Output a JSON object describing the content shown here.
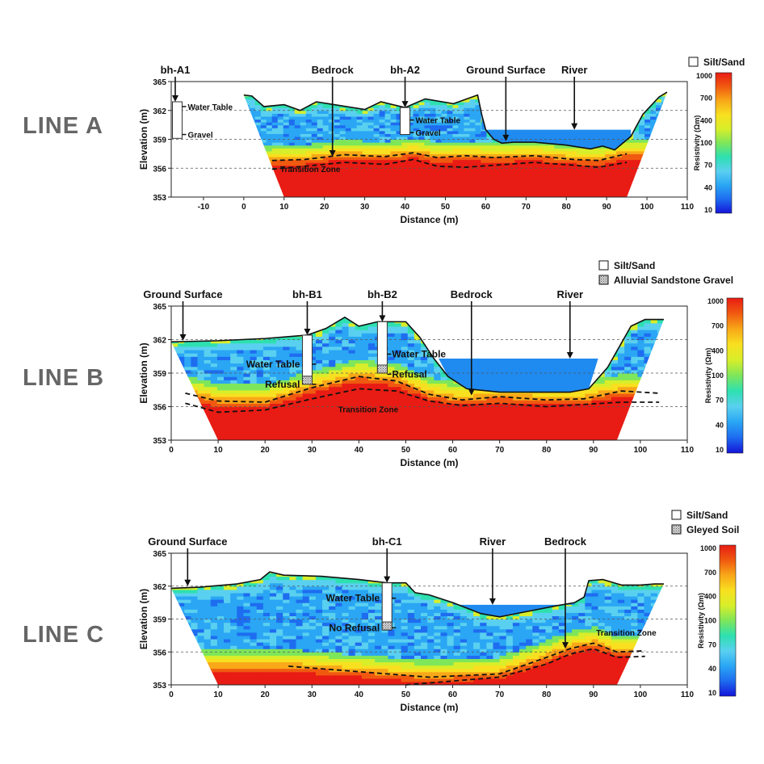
{
  "colors": {
    "water": "#1f8bf0",
    "ramp": [
      "#1414d8",
      "#1e6cf0",
      "#2aa6f4",
      "#5ad0f0",
      "#2ee0b0",
      "#7ee65a",
      "#d8ee2a",
      "#f8e020",
      "#f8a818",
      "#f05a10",
      "#e81c14"
    ]
  },
  "colorbar": {
    "ticks": [
      "1000",
      "700",
      "400",
      "100",
      "70",
      "40",
      "10"
    ],
    "label": "Resistivity (Ωm)"
  },
  "chart_data": [
    {
      "type": "heatmap",
      "panel": "LINE A",
      "title": "LINE A",
      "xlabel": "Distance (m)",
      "ylabel": "Elevation (m)",
      "xlim": [
        -18,
        110
      ],
      "ylim": [
        353,
        365
      ],
      "xticks": [
        "-10",
        "0",
        "10",
        "20",
        "30",
        "40",
        "50",
        "60",
        "70",
        "80",
        "90",
        "100",
        "110"
      ],
      "xtick_values": [
        -10,
        0,
        10,
        20,
        30,
        40,
        50,
        60,
        70,
        80,
        90,
        100,
        110
      ],
      "yticks": [
        "365",
        "362",
        "359",
        "356",
        "353"
      ],
      "ytick_values": [
        365,
        362,
        359,
        356,
        353
      ],
      "legend": [
        "Silt/Sand"
      ],
      "ground_surface": [
        [
          0,
          363.6
        ],
        [
          2,
          363.5
        ],
        [
          5,
          362.4
        ],
        [
          10,
          362.6
        ],
        [
          14,
          362.0
        ],
        [
          18,
          362.9
        ],
        [
          24,
          362.5
        ],
        [
          30,
          362.1
        ],
        [
          34,
          362.9
        ],
        [
          40,
          362.3
        ],
        [
          45,
          363.2
        ],
        [
          52,
          362.7
        ],
        [
          58,
          363.6
        ],
        [
          59,
          361.6
        ],
        [
          60,
          360.0
        ],
        [
          62,
          359.0
        ],
        [
          64,
          358.6
        ],
        [
          67,
          358.7
        ],
        [
          72,
          358.7
        ],
        [
          80,
          358.4
        ],
        [
          86,
          358.0
        ],
        [
          89,
          358.3
        ],
        [
          92,
          357.9
        ],
        [
          96,
          359.3
        ],
        [
          99,
          361.6
        ],
        [
          103,
          363.4
        ],
        [
          105,
          363.9
        ]
      ],
      "bedrock_surface": [
        [
          7,
          356.8
        ],
        [
          15,
          356.9
        ],
        [
          25,
          357.4
        ],
        [
          35,
          357.2
        ],
        [
          42,
          357.6
        ],
        [
          48,
          357.1
        ],
        [
          55,
          357.3
        ],
        [
          62,
          357.1
        ],
        [
          72,
          357.3
        ],
        [
          82,
          356.9
        ],
        [
          88,
          356.8
        ],
        [
          95,
          357.5
        ]
      ],
      "transition_lower": [
        [
          7,
          355.9
        ],
        [
          15,
          356.2
        ],
        [
          25,
          356.6
        ],
        [
          35,
          356.4
        ],
        [
          42,
          356.9
        ],
        [
          48,
          356.2
        ],
        [
          55,
          356.1
        ],
        [
          62,
          356.3
        ],
        [
          72,
          356.6
        ],
        [
          82,
          356.3
        ],
        [
          88,
          356.1
        ],
        [
          95,
          356.6
        ]
      ],
      "river": {
        "x": [
          59,
          96
        ],
        "elevation": 360.0
      },
      "boreholes": [
        {
          "name": "bh-A1",
          "x": -16.5,
          "top": 362.9,
          "bottom": 359.1,
          "labels": [
            [
              "Water Table",
              362.4
            ],
            [
              "Gravel",
              359.5
            ]
          ]
        },
        {
          "name": "bh-A2",
          "x": 40,
          "top": 362.3,
          "bottom": 359.5,
          "labels": [
            [
              "Water Table",
              361.0
            ],
            [
              "Gravel",
              359.7
            ]
          ]
        }
      ],
      "annotations": [
        {
          "text": "Bedrock",
          "x": 22,
          "arrow_to": 357.2
        },
        {
          "text": "bh-A2",
          "x": 40,
          "arrow_to": 362.3
        },
        {
          "text": "Ground Surface",
          "x": 65,
          "arrow_to": 358.8
        },
        {
          "text": "River",
          "x": 82,
          "arrow_to": 360.0
        },
        {
          "text": "bh-A1",
          "x": -17,
          "arrow_to": 362.9
        },
        {
          "text": "Transition Zone",
          "x": 16.5,
          "y": 355.6
        }
      ]
    },
    {
      "type": "heatmap",
      "panel": "LINE B",
      "title": "LINE B",
      "xlabel": "Distance (m)",
      "ylabel": "Elevation (m)",
      "xlim": [
        0,
        110
      ],
      "ylim": [
        353,
        365
      ],
      "xticks": [
        "0",
        "10",
        "20",
        "30",
        "40",
        "50",
        "60",
        "70",
        "80",
        "90",
        "100",
        "110"
      ],
      "xtick_values": [
        0,
        10,
        20,
        30,
        40,
        50,
        60,
        70,
        80,
        90,
        100,
        110
      ],
      "yticks": [
        "365",
        "362",
        "359",
        "356",
        "353"
      ],
      "ytick_values": [
        365,
        362,
        359,
        356,
        353
      ],
      "legend": [
        "Silt/Sand",
        "Alluvial Sandstone Gravel"
      ],
      "ground_surface": [
        [
          0,
          361.8
        ],
        [
          10,
          361.9
        ],
        [
          20,
          362.1
        ],
        [
          29,
          362.4
        ],
        [
          33,
          363.0
        ],
        [
          37,
          364.0
        ],
        [
          40,
          363.2
        ],
        [
          44,
          363.6
        ],
        [
          50,
          363.6
        ],
        [
          53,
          362.2
        ],
        [
          56,
          360.3
        ],
        [
          59,
          358.7
        ],
        [
          63,
          357.6
        ],
        [
          70,
          357.3
        ],
        [
          80,
          357.3
        ],
        [
          85,
          357.3
        ],
        [
          89,
          357.6
        ],
        [
          93,
          359.5
        ],
        [
          98,
          363.2
        ],
        [
          101,
          363.8
        ],
        [
          105,
          363.8
        ]
      ],
      "bedrock_surface": [
        [
          3,
          357.2
        ],
        [
          10,
          356.5
        ],
        [
          20,
          356.4
        ],
        [
          30,
          357.7
        ],
        [
          40,
          358.7
        ],
        [
          48,
          358.3
        ],
        [
          55,
          357.1
        ],
        [
          62,
          356.6
        ],
        [
          70,
          356.9
        ],
        [
          80,
          356.6
        ],
        [
          88,
          356.7
        ],
        [
          96,
          357.4
        ],
        [
          104,
          357.2
        ]
      ],
      "transition_lower": [
        [
          3,
          356.3
        ],
        [
          10,
          355.5
        ],
        [
          20,
          355.7
        ],
        [
          30,
          356.7
        ],
        [
          40,
          357.6
        ],
        [
          48,
          357.4
        ],
        [
          55,
          356.5
        ],
        [
          62,
          356.1
        ],
        [
          70,
          356.3
        ],
        [
          80,
          356.0
        ],
        [
          88,
          356.2
        ],
        [
          96,
          356.4
        ],
        [
          104,
          356.4
        ]
      ],
      "river": {
        "x": [
          57,
          91
        ],
        "elevation": 360.3
      },
      "boreholes": [
        {
          "name": "bh-B1",
          "x": 29,
          "top": 362.4,
          "bottom": 358.0,
          "labels": [
            [
              "Water Table",
              359.8
            ],
            [
              "Refusal",
              358.0
            ]
          ]
        },
        {
          "name": "bh-B2",
          "x": 45,
          "top": 363.6,
          "bottom": 359.0,
          "labels": [
            [
              "Water Table",
              360.7
            ],
            [
              "Refusal",
              358.9
            ]
          ]
        }
      ],
      "annotations": [
        {
          "text": "Ground Surface",
          "x": 2.5,
          "arrow_to": 361.9
        },
        {
          "text": "bh-B1",
          "x": 29,
          "arrow_to": 362.4
        },
        {
          "text": "bh-B2",
          "x": 45,
          "arrow_to": 363.6
        },
        {
          "text": "Bedrock",
          "x": 64,
          "arrow_to": 357.0
        },
        {
          "text": "River",
          "x": 85,
          "arrow_to": 360.3
        },
        {
          "text": "Transition Zone",
          "x": 42,
          "y": 355.5
        }
      ]
    },
    {
      "type": "heatmap",
      "panel": "LINE C",
      "title": "LINE C",
      "xlabel": "Distance (m)",
      "ylabel": "Elevation (m)",
      "xlim": [
        0,
        110
      ],
      "ylim": [
        353,
        365
      ],
      "xticks": [
        "0",
        "10",
        "20",
        "30",
        "40",
        "50",
        "60",
        "70",
        "80",
        "90",
        "100",
        "110"
      ],
      "xtick_values": [
        0,
        10,
        20,
        30,
        40,
        50,
        60,
        70,
        80,
        90,
        100,
        110
      ],
      "yticks": [
        "365",
        "362",
        "359",
        "356",
        "353"
      ],
      "ytick_values": [
        365,
        362,
        359,
        356,
        353
      ],
      "legend": [
        "Silt/Sand",
        "Gleyed Soil"
      ],
      "ground_surface": [
        [
          0,
          361.8
        ],
        [
          6,
          361.9
        ],
        [
          14,
          362.2
        ],
        [
          19,
          362.6
        ],
        [
          21,
          363.3
        ],
        [
          24,
          363.0
        ],
        [
          32,
          362.9
        ],
        [
          40,
          362.6
        ],
        [
          46,
          362.3
        ],
        [
          50,
          362.3
        ],
        [
          52,
          361.4
        ],
        [
          55,
          361.2
        ],
        [
          60,
          360.5
        ],
        [
          66,
          359.5
        ],
        [
          70,
          359.2
        ],
        [
          76,
          359.7
        ],
        [
          82,
          360.2
        ],
        [
          86,
          360.5
        ],
        [
          88,
          361.0
        ],
        [
          89,
          362.5
        ],
        [
          92,
          362.6
        ],
        [
          96,
          362.1
        ],
        [
          100,
          362.1
        ],
        [
          103,
          362.2
        ],
        [
          105,
          362.2
        ]
      ],
      "bedrock_surface": [
        [
          25,
          354.7
        ],
        [
          40,
          354.2
        ],
        [
          55,
          353.7
        ],
        [
          70,
          354.0
        ],
        [
          80,
          355.5
        ],
        [
          85,
          356.3
        ],
        [
          90,
          356.8
        ],
        [
          95,
          356.0
        ],
        [
          101,
          356.1
        ]
      ],
      "transition_lower": [
        [
          50,
          353.0
        ],
        [
          70,
          353.7
        ],
        [
          80,
          354.9
        ],
        [
          85,
          355.8
        ],
        [
          90,
          356.3
        ],
        [
          95,
          355.5
        ],
        [
          101,
          355.6
        ]
      ],
      "river": {
        "x": [
          60,
          86
        ],
        "elevation": 360.3
      },
      "boreholes": [
        {
          "name": "bh-C1",
          "x": 46,
          "top": 362.3,
          "bottom": 358.0,
          "labels": [
            [
              "Water Table",
              360.9
            ],
            [
              "No Refusal",
              358.2
            ]
          ]
        }
      ],
      "annotations": [
        {
          "text": "Ground Surface",
          "x": 3.5,
          "arrow_to": 362.0
        },
        {
          "text": "bh-C1",
          "x": 46,
          "arrow_to": 362.3
        },
        {
          "text": "River",
          "x": 68.5,
          "arrow_to": 360.3
        },
        {
          "text": "Bedrock",
          "x": 84,
          "arrow_to": 356.3
        },
        {
          "text": "Transition Zone",
          "x": 97,
          "y": 357.5
        }
      ]
    }
  ]
}
